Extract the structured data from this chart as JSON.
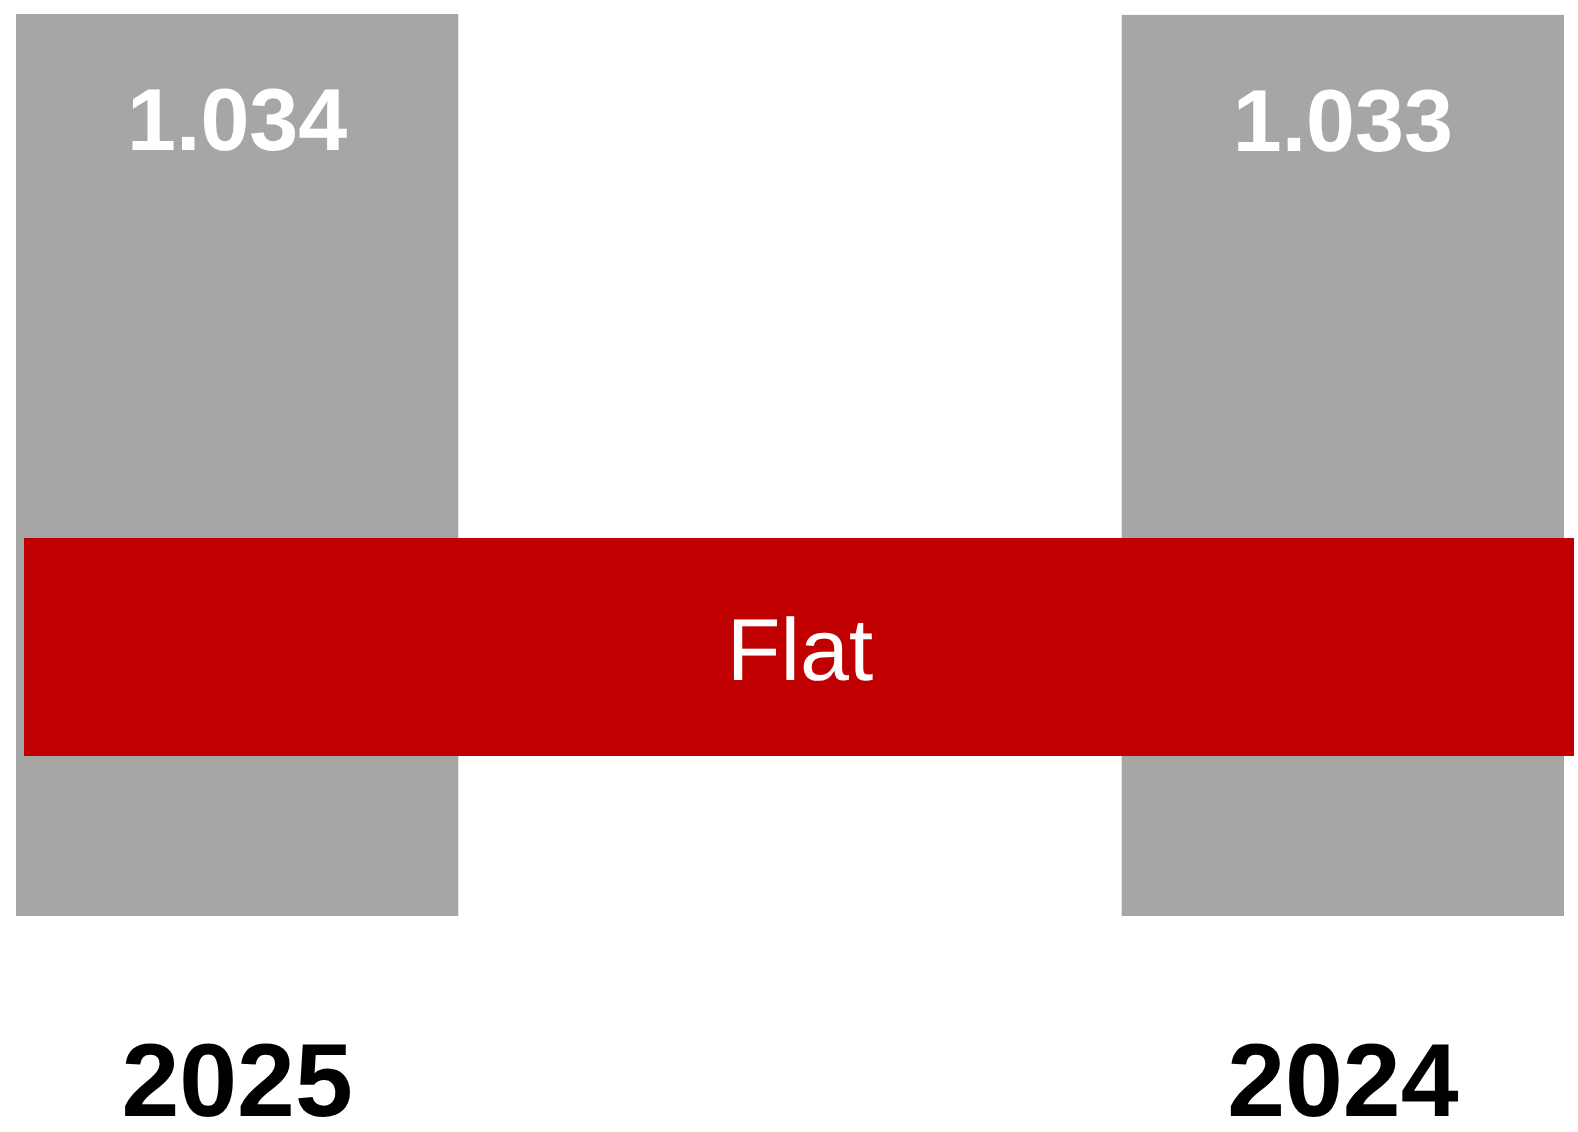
{
  "chart_data": {
    "type": "bar",
    "categories": [
      "2025",
      "2024"
    ],
    "values": [
      1.034,
      1.033
    ],
    "color": "#a6a6a6",
    "data_labels": true,
    "annotations": [
      "Flat"
    ]
  }
}
